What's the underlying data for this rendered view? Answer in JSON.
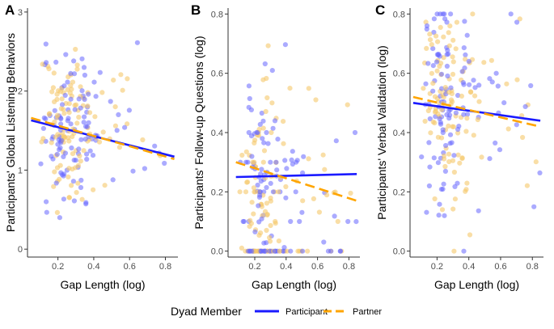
{
  "colors": {
    "participant": "#1a1aff",
    "partner": "#ffa500",
    "participant_point": "#6666ff",
    "partner_point": "#f5c86a",
    "axis": "#333333"
  },
  "legend": {
    "title": "Dyad Member",
    "items": [
      {
        "name": "Participant",
        "color": "#1a1aff",
        "dash": "solid"
      },
      {
        "name": "Partner",
        "color": "#ffa500",
        "dash": "dashed"
      }
    ]
  },
  "chart_data": [
    {
      "type": "scatter",
      "panel": "A",
      "title": "",
      "xlabel": "Gap Length (log)",
      "ylabel": "Participants' Global Listening Behaviors",
      "xlim": [
        0.03,
        0.87
      ],
      "ylim": [
        -0.1,
        3.05
      ],
      "xticks": [
        0.2,
        0.4,
        0.6,
        0.8
      ],
      "xtick_labels": [
        "0.2",
        "0.4",
        "0.6",
        "0.8"
      ],
      "yticks": [
        0,
        1,
        2,
        3
      ],
      "ytick_labels": [
        "0",
        "1",
        "2",
        "3"
      ],
      "grid": false,
      "cloud": {
        "n": 230,
        "y_center": 1.55,
        "y_spread": 0.45,
        "y_min": 0.1,
        "y_max": 3.0,
        "discrete_step": 0
      },
      "series": [
        {
          "name": "Participant",
          "fit": [
            [
              0.05,
              1.63
            ],
            [
              0.85,
              1.17
            ]
          ]
        },
        {
          "name": "Partner",
          "fit": [
            [
              0.05,
              1.66
            ],
            [
              0.85,
              1.14
            ]
          ]
        }
      ]
    },
    {
      "type": "scatter",
      "panel": "B",
      "title": "",
      "xlabel": "Gap Length (log)",
      "ylabel": "Participants' Follow-up Questions (log)",
      "xlim": [
        0.03,
        0.87
      ],
      "ylim": [
        -0.02,
        0.82
      ],
      "xticks": [
        0.2,
        0.4,
        0.6,
        0.8
      ],
      "xtick_labels": [
        "0.2",
        "0.4",
        "0.6",
        "0.8"
      ],
      "yticks": [
        0,
        0.2,
        0.4,
        0.6,
        0.8
      ],
      "ytick_labels": [
        "0.0",
        "0.2",
        "0.4",
        "0.6",
        "0.8"
      ],
      "grid": false,
      "cloud": {
        "n": 230,
        "y_center": 0.25,
        "y_spread": 0.16,
        "y_min": 0.0,
        "y_max": 0.74,
        "discrete_step": 0.0
      },
      "series": [
        {
          "name": "Participant",
          "fit": [
            [
              0.08,
              0.25
            ],
            [
              0.85,
              0.26
            ]
          ]
        },
        {
          "name": "Partner",
          "fit": [
            [
              0.08,
              0.3
            ],
            [
              0.85,
              0.17
            ]
          ]
        }
      ]
    },
    {
      "type": "scatter",
      "panel": "C",
      "title": "",
      "xlabel": "Gap Length (log)",
      "ylabel": "Participants' Verbal Validation (log)",
      "xlim": [
        0.03,
        0.87
      ],
      "ylim": [
        -0.02,
        0.82
      ],
      "xticks": [
        0.2,
        0.4,
        0.6,
        0.8
      ],
      "xtick_labels": [
        "0.2",
        "0.4",
        "0.6",
        "0.8"
      ],
      "yticks": [
        0,
        0.2,
        0.4,
        0.6,
        0.8
      ],
      "ytick_labels": [
        "0.0",
        "0.2",
        "0.4",
        "0.6",
        "0.8"
      ],
      "grid": false,
      "cloud": {
        "n": 230,
        "y_center": 0.5,
        "y_spread": 0.17,
        "y_min": 0.0,
        "y_max": 0.8,
        "discrete_step": 0
      },
      "series": [
        {
          "name": "Participant",
          "fit": [
            [
              0.05,
              0.5
            ],
            [
              0.85,
              0.44
            ]
          ]
        },
        {
          "name": "Partner",
          "fit": [
            [
              0.05,
              0.52
            ],
            [
              0.85,
              0.42
            ]
          ]
        }
      ]
    }
  ]
}
